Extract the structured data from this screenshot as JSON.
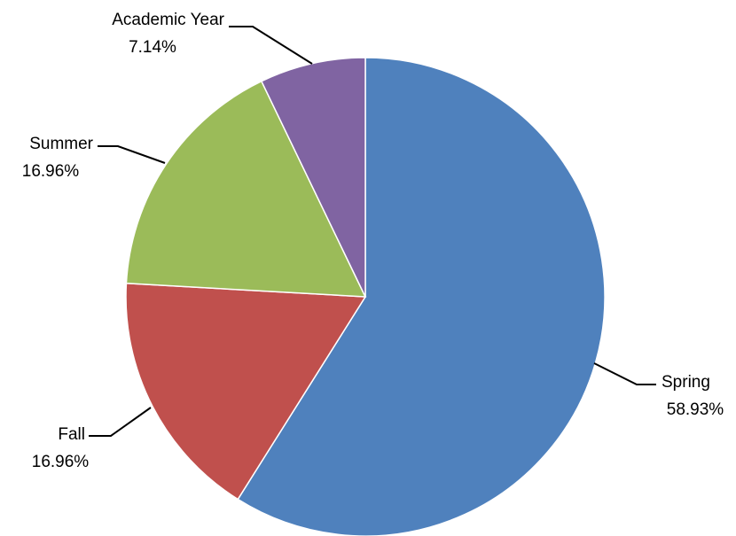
{
  "chart_data": {
    "type": "pie",
    "title": "",
    "start_angle_deg": 0,
    "direction": "clockwise",
    "legend": "none",
    "data_labels": "outside with leader lines",
    "slices": [
      {
        "label": "Spring",
        "value": 58.93,
        "value_label": "58.93%",
        "color": "#4F81BD"
      },
      {
        "label": "Fall",
        "value": 16.96,
        "value_label": "16.96%",
        "color": "#C0504D"
      },
      {
        "label": "Summer",
        "value": 16.96,
        "value_label": "16.96%",
        "color": "#9BBB59"
      },
      {
        "label": "Academic Year",
        "value": 7.14,
        "value_label": "7.14%",
        "color": "#8064A2"
      }
    ]
  }
}
